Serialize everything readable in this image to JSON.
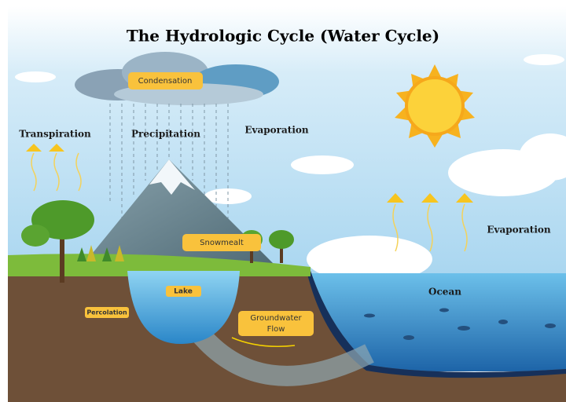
{
  "title": "The Hydrologic Cycle (Water Cycle)",
  "labels": {
    "condensation": "Condensation",
    "transpiration": "Transpiration",
    "precipitation": "Precipitation",
    "evaporation_top": "Evaporation",
    "evaporation_right": "Evaporation",
    "snowmelt": "Snowmealt",
    "lake": "Lake",
    "percolation": "Percolation",
    "groundwater_flow": [
      "Groundwater",
      "Flow"
    ],
    "ocean": "Ocean"
  }
}
